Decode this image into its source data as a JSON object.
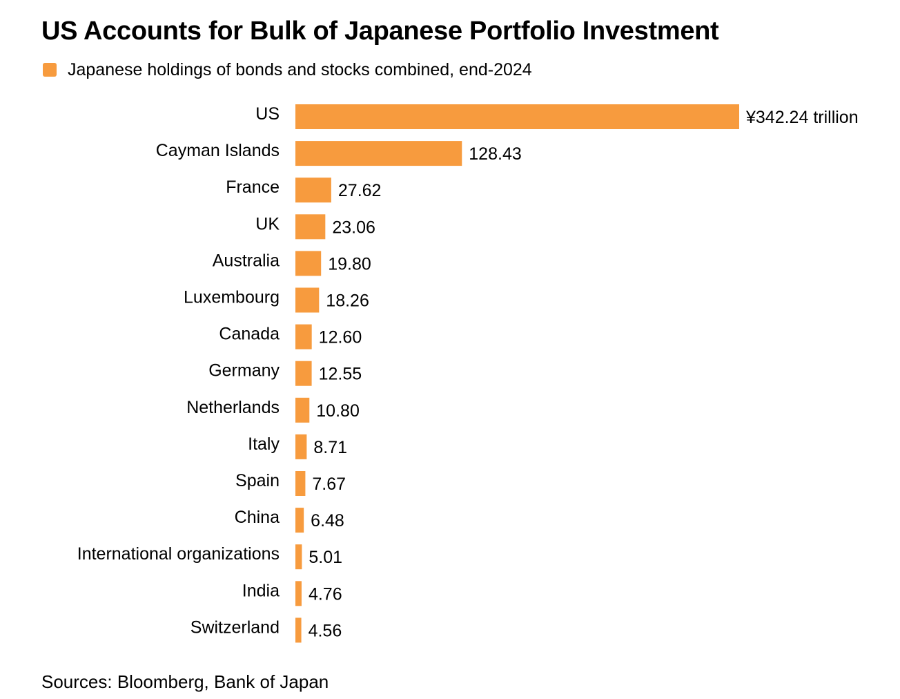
{
  "colors": {
    "bar": "#F79B3E",
    "text": "#000000",
    "background": "#FFFFFF"
  },
  "chart_data": {
    "type": "bar",
    "orientation": "horizontal",
    "title": "US Accounts for Bulk of Japanese Portfolio Investment",
    "legend": "Japanese holdings of bonds and stocks combined, end-2024",
    "legend_placement": "top-left",
    "grid": false,
    "xlim": [
      0,
      342.24
    ],
    "categories": [
      "US",
      "Cayman Islands",
      "France",
      "UK",
      "Australia",
      "Luxembourg",
      "Canada",
      "Germany",
      "Netherlands",
      "Italy",
      "Spain",
      "China",
      "International organizations",
      "India",
      "Switzerland"
    ],
    "values": [
      342.24,
      128.43,
      27.62,
      23.06,
      19.8,
      18.26,
      12.6,
      12.55,
      10.8,
      8.71,
      7.67,
      6.48,
      5.01,
      4.76,
      4.56
    ],
    "value_labels": [
      "¥342.24 trillion",
      "128.43",
      "27.62",
      "23.06",
      "19.80",
      "18.26",
      "12.60",
      "12.55",
      "10.80",
      "8.71",
      "7.67",
      "6.48",
      "5.01",
      "4.76",
      "4.56"
    ]
  },
  "source": "Sources: Bloomberg, Bank of Japan"
}
